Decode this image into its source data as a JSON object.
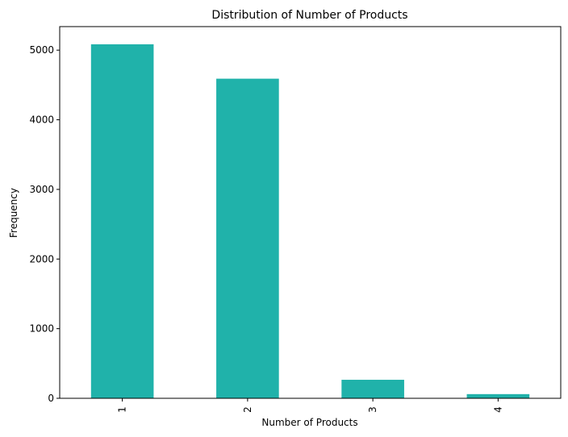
{
  "chart_data": {
    "type": "bar",
    "title": "Distribution of Number of Products",
    "xlabel": "Number of Products",
    "ylabel": "Frequency",
    "categories": [
      "1",
      "2",
      "3",
      "4"
    ],
    "values": [
      5084,
      4590,
      266,
      60
    ],
    "ylim": [
      0,
      5338
    ],
    "yticks": [
      0,
      1000,
      2000,
      3000,
      4000,
      5000
    ],
    "bar_color": "#20B2AA",
    "grid": false,
    "legend": "none",
    "x_tick_rotation": "vertical"
  }
}
